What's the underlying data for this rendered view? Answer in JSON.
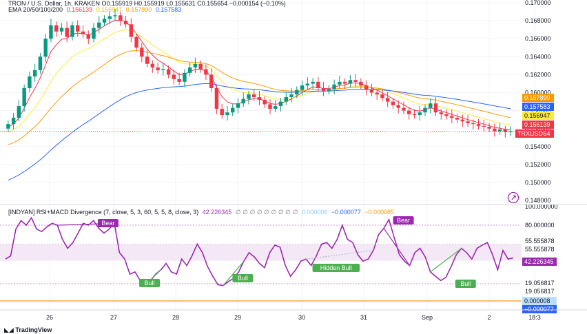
{
  "legend": {
    "symbol_line": "TRON / U.S. Dollar, 1h, KRAKEN  O0.155919  H0.155919  L0.155631  C0.155654  −0.000154 (−0.10%)",
    "ema_title": "EMA 20/50/100/200",
    "ema_values": [
      {
        "value": "0.156139",
        "color": "#f23645"
      },
      {
        "value": "0.156947",
        "color": "#ffeb3b"
      },
      {
        "value": "0.157890",
        "color": "#ff9800"
      },
      {
        "value": "0.157583",
        "color": "#2962ff"
      }
    ],
    "indicator_title": "[INDYAN] RSI+MACD Divergence (7, close, 5, 3, 60, 5, 5, 8, close, 3)",
    "indicator_main": "42.226345",
    "indicator_placeholders": "∅ ∅ ∅ ∅ ∅ ∅ ∅ ∅ ∅",
    "indicator_v2": "0.000008",
    "indicator_v3": "−0.000077",
    "indicator_v4": "−0.000085"
  },
  "price_axis": {
    "ticks": [
      "0.170000",
      "0.168000",
      "0.166000",
      "0.164000",
      "0.162000",
      "0.160000",
      "0.158000",
      "0.156000",
      "0.154000",
      "0.152000",
      "0.150000",
      "0.148000"
    ],
    "badges": [
      {
        "text": "0.157890",
        "color": "#ff9800",
        "text_color": "#ffffff"
      },
      {
        "text": "0.157583",
        "color": "#2962ff",
        "text_color": "#ffffff"
      },
      {
        "text": "0.156947",
        "color": "#ffeb3b",
        "text_color": "#131722"
      },
      {
        "text": "0.156139",
        "color": "#f23645",
        "text_color": "#ffffff"
      },
      {
        "text": "0.155654",
        "color": "#f23645",
        "text_color": "#ffffff"
      }
    ],
    "symbol_badge": "TRXUSD"
  },
  "rsi_axis": {
    "ticks": [
      "100.000000",
      "80.000000",
      "55.555878",
      "55.555878",
      "19.056817",
      "19.056817"
    ],
    "badges": [
      {
        "text": "42.226345",
        "color": "#9c27b0",
        "text_color": "#ffffff"
      },
      {
        "text": "0.000008",
        "color": "#bbdefb",
        "text_color": "#131722"
      },
      {
        "text": "−0.000077",
        "color": "#2962ff",
        "text_color": "#ffffff"
      }
    ]
  },
  "time_axis": {
    "labels": [
      "26",
      "27",
      "28",
      "29",
      "30",
      "31",
      "Sep",
      "2",
      "18:3"
    ]
  },
  "signals": [
    {
      "label": "Bear",
      "kind": "bear"
    },
    {
      "label": "Bull",
      "kind": "bull"
    },
    {
      "label": "Bull",
      "kind": "bull"
    },
    {
      "label": "Hidden Bull",
      "kind": "bull"
    },
    {
      "label": "Bear",
      "kind": "bear"
    },
    {
      "label": "Bull",
      "kind": "bull"
    }
  ],
  "footer": {
    "brand": "TradingView"
  },
  "colors": {
    "up": "#089981",
    "down": "#f23645",
    "rsi": "#9c27b0",
    "ema20": "#f23645",
    "ema50": "#ffeb3b",
    "ema100": "#ff9800",
    "ema200": "#2962ff",
    "bull": "#4caf50",
    "bear": "#9c27b0",
    "macd": "#ff9800"
  },
  "chart_data": [
    {
      "type": "candlestick",
      "title": "TRON / U.S. Dollar, 1h, KRAKEN",
      "ylim": [
        0.148,
        0.1705
      ],
      "x_labels": [
        "26",
        "27",
        "28",
        "29",
        "30",
        "31",
        "Sep",
        "2",
        "18:3"
      ],
      "close_approx": [
        0.1565,
        0.1572,
        0.1585,
        0.1605,
        0.1618,
        0.1625,
        0.164,
        0.166,
        0.1675,
        0.1668,
        0.1672,
        0.1662,
        0.1675,
        0.1668,
        0.1665,
        0.166,
        0.1672,
        0.1678,
        0.1682,
        0.1685,
        0.1686,
        0.168,
        0.1676,
        0.1662,
        0.165,
        0.164,
        0.1632,
        0.1628,
        0.1625,
        0.1626,
        0.162,
        0.1615,
        0.1612,
        0.1622,
        0.1628,
        0.1632,
        0.1626,
        0.162,
        0.1605,
        0.1582,
        0.1575,
        0.1578,
        0.1583,
        0.1588,
        0.1593,
        0.1598,
        0.1595,
        0.1592,
        0.1587,
        0.1582,
        0.1585,
        0.159,
        0.1595,
        0.1598,
        0.1603,
        0.1608,
        0.161,
        0.1612,
        0.1605,
        0.1602,
        0.1604,
        0.1609,
        0.1612,
        0.161,
        0.1614,
        0.1612,
        0.1608,
        0.1603,
        0.16,
        0.1598,
        0.1594,
        0.159,
        0.1586,
        0.1583,
        0.158,
        0.1576,
        0.1575,
        0.1578,
        0.1583,
        0.1588,
        0.1578,
        0.1576,
        0.1574,
        0.1572,
        0.157,
        0.1568,
        0.1566,
        0.1565,
        0.1563,
        0.1562,
        0.156,
        0.1557,
        0.1559,
        0.1556,
        0.1557
      ],
      "ema": {
        "EMA 20": {
          "color": "#f23645",
          "last": 0.156139
        },
        "EMA 50": {
          "color": "#ffeb3b",
          "last": 0.156947
        },
        "EMA 100": {
          "color": "#ff9800",
          "last": 0.15789
        },
        "EMA 200": {
          "color": "#2962ff",
          "last": 0.157583
        }
      },
      "last_price": 0.155654
    },
    {
      "type": "line",
      "title": "[INDYAN] RSI+MACD Divergence (7, close, 5, 3, 60, 5, 5, 8, close, 3)",
      "ylim": [
        0,
        100
      ],
      "levels": [
        80,
        55.555878,
        19.056817
      ],
      "band": [
        40.5,
        55.555878
      ],
      "rsi_approx": [
        42,
        45,
        75,
        85,
        80,
        88,
        75,
        72,
        78,
        82,
        80,
        62,
        52,
        58,
        70,
        82,
        80,
        85,
        76,
        70,
        75,
        82,
        48,
        42,
        28,
        30,
        22,
        18,
        22,
        28,
        32,
        38,
        30,
        28,
        42,
        36,
        45,
        56,
        48,
        35,
        26,
        18,
        17,
        21,
        24,
        30,
        40,
        48,
        44,
        38,
        34,
        48,
        55,
        53,
        36,
        26,
        32,
        40,
        42,
        36,
        45,
        56,
        58,
        52,
        62,
        80,
        62,
        58,
        46,
        40,
        42,
        50,
        68,
        76,
        86,
        65,
        46,
        40,
        36,
        48,
        52,
        44,
        30,
        26,
        22,
        25,
        35,
        46,
        52,
        48,
        42,
        52,
        55,
        58,
        46,
        32,
        50,
        42,
        43
      ],
      "last": 42.226345
    }
  ]
}
